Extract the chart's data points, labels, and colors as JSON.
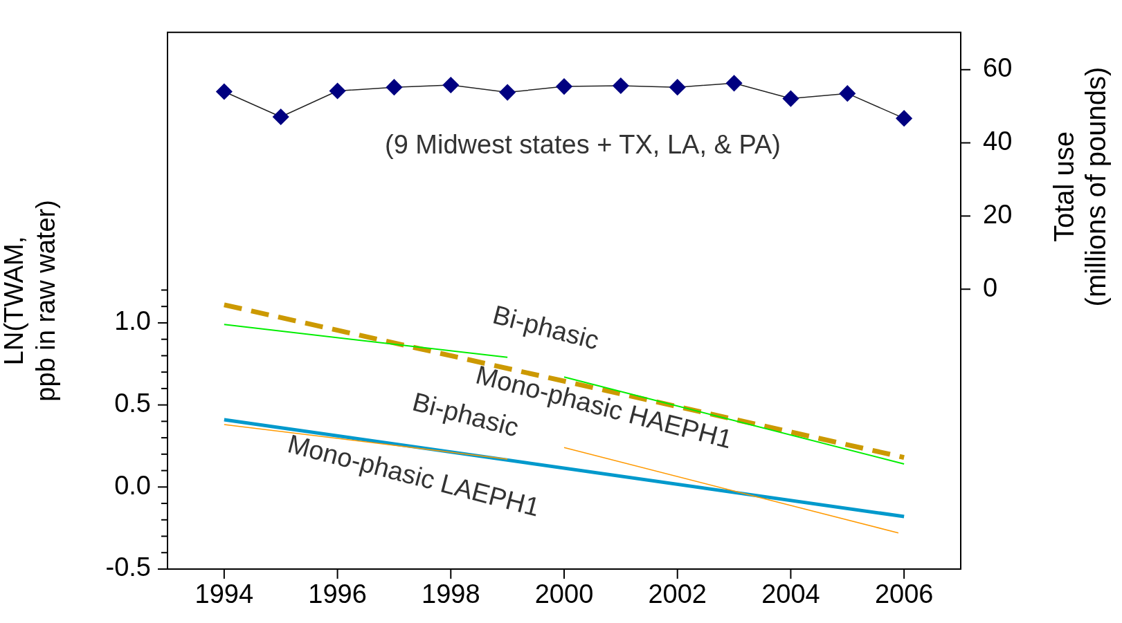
{
  "chart_data": {
    "type": "line",
    "ylabel": "LN(TWAM,\nppb in raw water)",
    "y2label": "Total use\n(millions of pounds)",
    "xlim": [
      1993,
      2007
    ],
    "xticks": [
      1994,
      1996,
      1998,
      2000,
      2002,
      2004,
      2006
    ],
    "ylim": [
      -0.5,
      2.77
    ],
    "yticks": [
      {
        "value": -0.5,
        "label": "-0.5"
      },
      {
        "value": -0.4,
        "label": null
      },
      {
        "value": -0.3,
        "label": null
      },
      {
        "value": -0.2,
        "label": null
      },
      {
        "value": -0.1,
        "label": null
      },
      {
        "value": 0,
        "label": "0.0"
      },
      {
        "value": 0.1,
        "label": null
      },
      {
        "value": 0.2,
        "label": null
      },
      {
        "value": 0.3,
        "label": null
      },
      {
        "value": 0.4,
        "label": null
      },
      {
        "value": 0.5,
        "label": "0.5"
      },
      {
        "value": 0.6,
        "label": null
      },
      {
        "value": 0.7,
        "label": null
      },
      {
        "value": 0.8,
        "label": null
      },
      {
        "value": 0.9,
        "label": null
      },
      {
        "value": 1.0,
        "label": "1.0"
      },
      {
        "value": 1.1,
        "label": null
      },
      {
        "value": 1.2,
        "label": null
      }
    ],
    "y2lim": [
      -76.5,
      70.2
    ],
    "y2ticks": [
      0,
      20,
      40,
      60
    ],
    "grid": false,
    "legend": false,
    "series": [
      {
        "type": "line",
        "axis": "y2",
        "marker": "diamond",
        "line_style": "solid",
        "color": "#000080",
        "x": [
          1994,
          1995,
          1996,
          1997,
          1998,
          1999,
          2000,
          2001,
          2002,
          2003,
          2004,
          2005,
          2006
        ],
        "values": [
          54.0,
          47.1,
          54.2,
          55.2,
          55.8,
          53.8,
          55.4,
          55.6,
          55.2,
          56.3,
          52.1,
          53.5,
          46.7
        ]
      },
      {
        "type": "line",
        "marker": "none",
        "line_style": "dashed",
        "color": "#cc9900",
        "x": [
          1994,
          2006
        ],
        "values": [
          1.11,
          0.18
        ]
      },
      {
        "type": "line",
        "marker": "none",
        "line_style": "solid",
        "color": "#00ee00",
        "x": [
          1994,
          1999
        ],
        "values": [
          0.99,
          0.79
        ]
      },
      {
        "type": "line",
        "marker": "none",
        "line_style": "solid",
        "color": "#00ee00",
        "x": [
          2000,
          2006
        ],
        "values": [
          0.67,
          0.14
        ]
      },
      {
        "type": "line",
        "marker": "none",
        "line_style": "solid",
        "color": "#0099cc",
        "x": [
          1994,
          2006
        ],
        "values": [
          0.41,
          -0.18
        ]
      },
      {
        "type": "line",
        "marker": "none",
        "line_style": "solid",
        "color": "#ff9900",
        "x": [
          1994,
          1999
        ],
        "values": [
          0.38,
          0.17
        ]
      },
      {
        "type": "line",
        "marker": "none",
        "line_style": "solid",
        "color": "#ff9900",
        "x": [
          2000,
          2005.9
        ],
        "values": [
          0.24,
          -0.28
        ]
      }
    ],
    "annotations": [
      "(9 Midwest states + TX, LA, & PA)",
      "Bi-phasic",
      "Mono-phasic HAEPH1",
      "Bi-phasic",
      "Mono-phasic LAEPH1"
    ]
  }
}
